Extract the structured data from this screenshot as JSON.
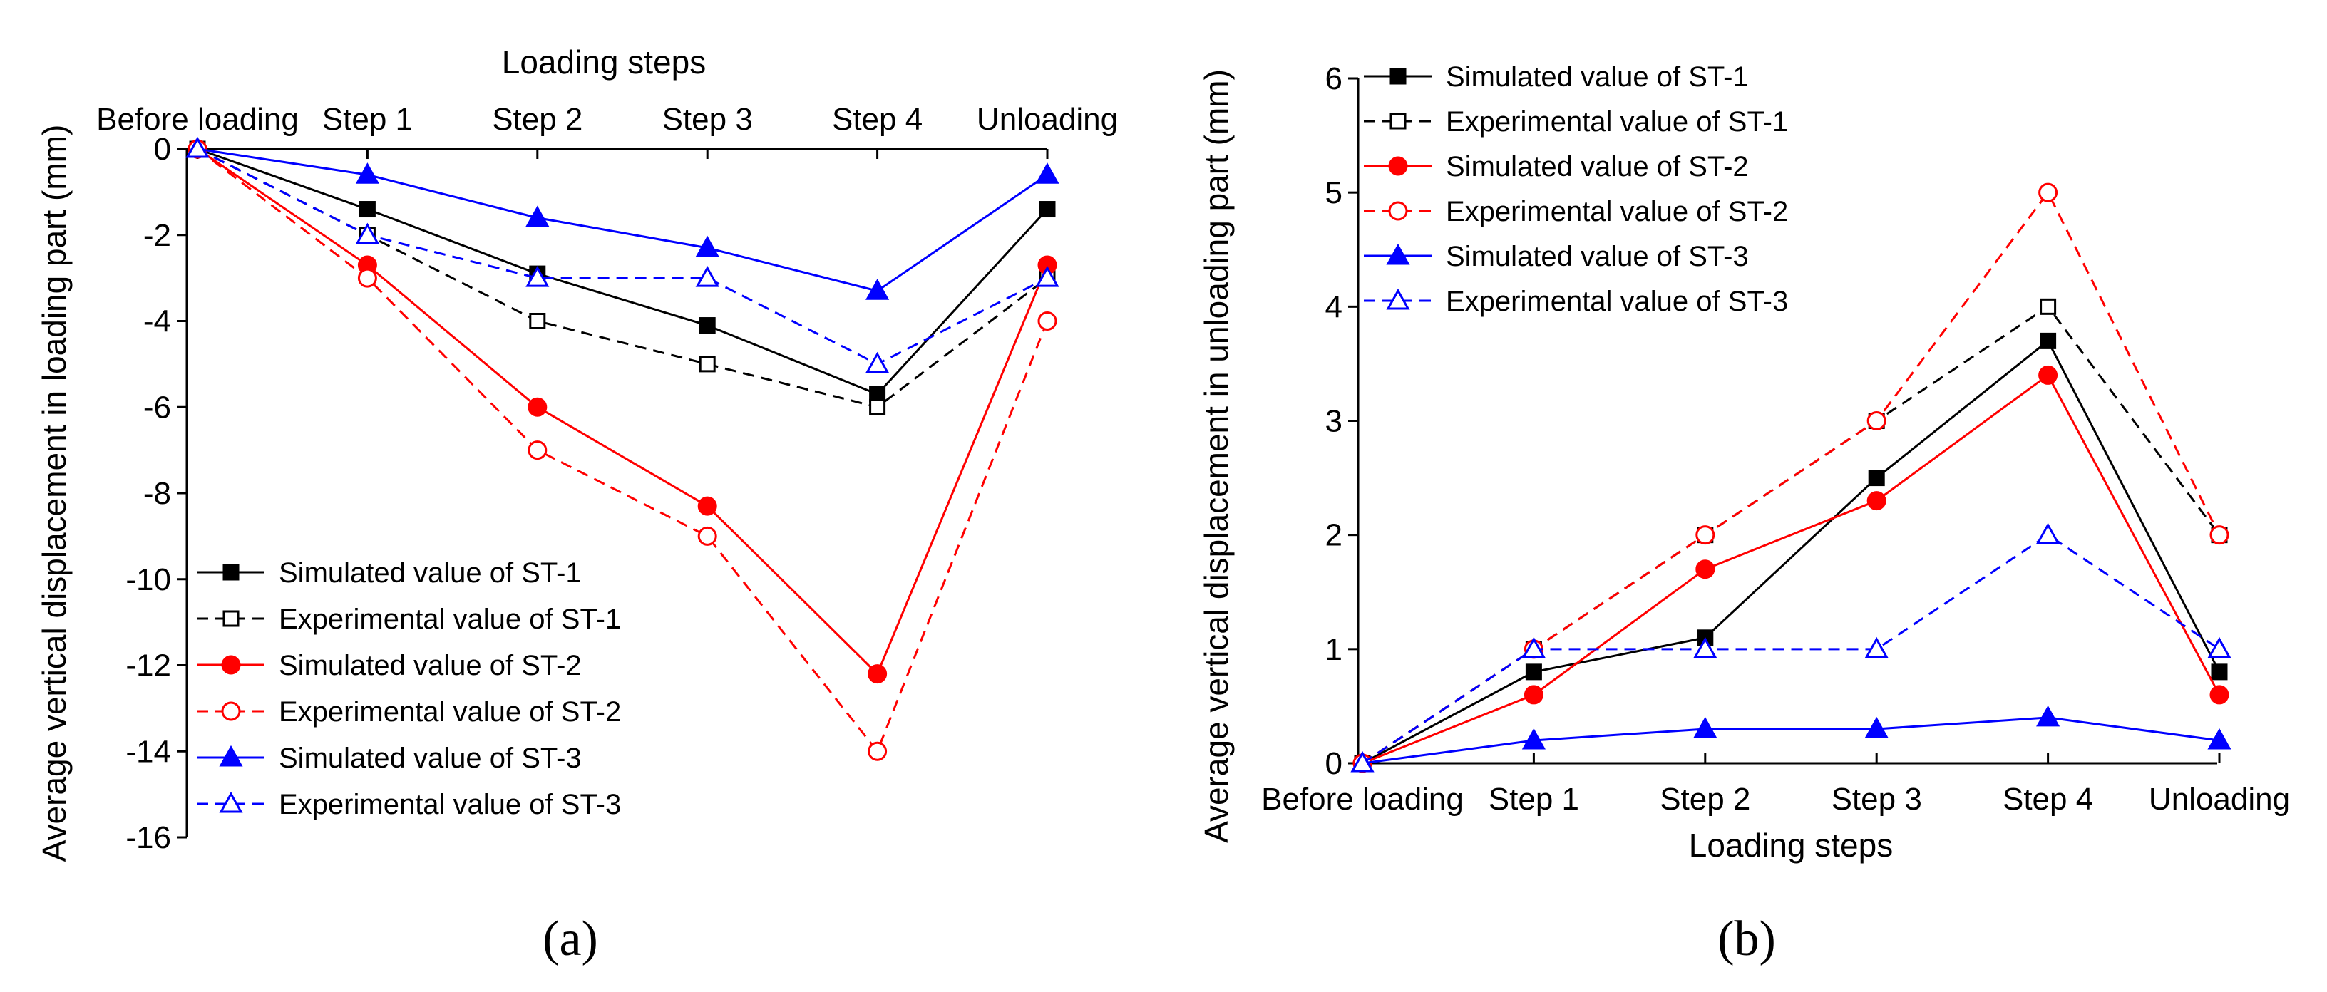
{
  "chart_data": [
    {
      "type": "line",
      "panel_label": "(a)",
      "title": "",
      "xlabel": "Loading steps",
      "ylabel": "Average vertical displacement in loading part (mm)",
      "xaxis_position": "top",
      "categories": [
        "Before loading",
        "Step 1",
        "Step 2",
        "Step 3",
        "Step 4",
        "Unloading"
      ],
      "ylim": [
        -16,
        0
      ],
      "yticks": [
        0,
        -2,
        -4,
        -6,
        -8,
        -10,
        -12,
        -14,
        -16
      ],
      "ytick_labels": [
        "0",
        "-2",
        "-4",
        "-6",
        "-8",
        "-10",
        "-12",
        "-14",
        "-16"
      ],
      "legend_position": "bottom-left",
      "series": [
        {
          "name": "Simulated value of ST-1",
          "color": "#000000",
          "style": "solid",
          "marker": "square",
          "filled": true,
          "values": [
            0,
            -1.4,
            -2.9,
            -4.1,
            -5.7,
            -1.4
          ]
        },
        {
          "name": "Experimental value of ST-1",
          "color": "#000000",
          "style": "dashed",
          "marker": "square",
          "filled": false,
          "values": [
            0,
            -2.0,
            -4.0,
            -5.0,
            -6.0,
            -3.0
          ]
        },
        {
          "name": "Simulated value of ST-2",
          "color": "#ff0000",
          "style": "solid",
          "marker": "circle",
          "filled": true,
          "values": [
            0,
            -2.7,
            -6.0,
            -8.3,
            -12.2,
            -2.7
          ]
        },
        {
          "name": "Experimental value of ST-2",
          "color": "#ff0000",
          "style": "dashed",
          "marker": "circle",
          "filled": false,
          "values": [
            0,
            -3.0,
            -7.0,
            -9.0,
            -14.0,
            -4.0
          ]
        },
        {
          "name": "Simulated value of ST-3",
          "color": "#0000ff",
          "style": "solid",
          "marker": "triangle",
          "filled": true,
          "values": [
            0,
            -0.6,
            -1.6,
            -2.3,
            -3.3,
            -0.6
          ]
        },
        {
          "name": "Experimental value of ST-3",
          "color": "#0000ff",
          "style": "dashed",
          "marker": "triangle",
          "filled": false,
          "values": [
            0,
            -2.0,
            -3.0,
            -3.0,
            -5.0,
            -3.0
          ]
        }
      ]
    },
    {
      "type": "line",
      "panel_label": "(b)",
      "title": "",
      "xlabel": "Loading steps",
      "ylabel": "Average vertical displacement in unloading part (mm)",
      "xaxis_position": "bottom",
      "categories": [
        "Before loading",
        "Step 1",
        "Step 2",
        "Step 3",
        "Step 4",
        "Unloading"
      ],
      "ylim": [
        0,
        6
      ],
      "yticks": [
        0,
        1,
        2,
        3,
        4,
        5,
        6
      ],
      "ytick_labels": [
        "0",
        "1",
        "2",
        "3",
        "4",
        "5",
        "6"
      ],
      "legend_position": "top-left",
      "series": [
        {
          "name": "Simulated value of ST-1",
          "color": "#000000",
          "style": "solid",
          "marker": "square",
          "filled": true,
          "values": [
            0,
            0.8,
            1.1,
            2.5,
            3.7,
            0.8
          ]
        },
        {
          "name": "Experimental value of ST-1",
          "color": "#000000",
          "style": "dashed",
          "marker": "square",
          "filled": false,
          "values": [
            0,
            1.0,
            2.0,
            3.0,
            4.0,
            2.0
          ]
        },
        {
          "name": "Simulated value of ST-2",
          "color": "#ff0000",
          "style": "solid",
          "marker": "circle",
          "filled": true,
          "values": [
            0,
            0.6,
            1.7,
            2.3,
            3.4,
            0.6
          ]
        },
        {
          "name": "Experimental value of ST-2",
          "color": "#ff0000",
          "style": "dashed",
          "marker": "circle",
          "filled": false,
          "values": [
            0,
            1.0,
            2.0,
            3.0,
            5.0,
            2.0
          ]
        },
        {
          "name": "Simulated value of ST-3",
          "color": "#0000ff",
          "style": "solid",
          "marker": "triangle",
          "filled": true,
          "values": [
            0,
            0.2,
            0.3,
            0.3,
            0.4,
            0.2
          ]
        },
        {
          "name": "Experimental value of ST-3",
          "color": "#0000ff",
          "style": "dashed",
          "marker": "triangle",
          "filled": false,
          "values": [
            0,
            1.0,
            1.0,
            1.0,
            2.0,
            1.0
          ]
        }
      ]
    }
  ]
}
